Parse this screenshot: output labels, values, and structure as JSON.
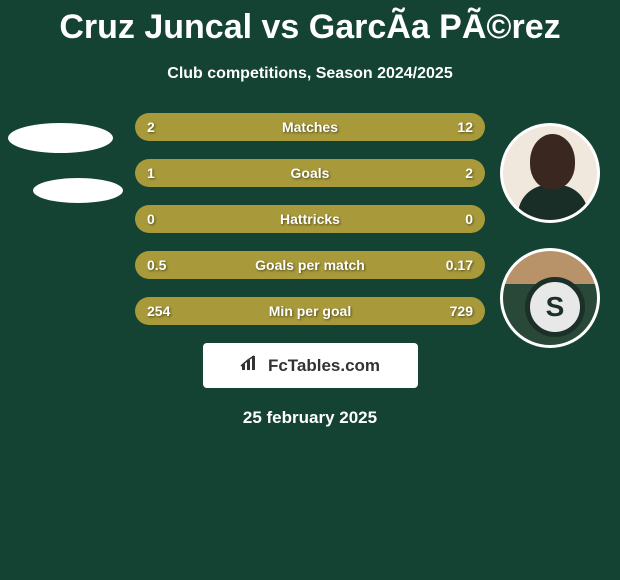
{
  "title": "Cruz Juncal vs GarcÃa PÃ©rez",
  "subtitle": "Club competitions, Season 2024/2025",
  "colors": {
    "background": "#144233",
    "bar_fill": "#a89a3a",
    "bar_bg": "#1a3028",
    "text": "#ffffff"
  },
  "stats": [
    {
      "label": "Matches",
      "left_value": "2",
      "right_value": "12",
      "left_pct": 14,
      "right_pct": 86
    },
    {
      "label": "Goals",
      "left_value": "1",
      "right_value": "2",
      "left_pct": 33,
      "right_pct": 67
    },
    {
      "label": "Hattricks",
      "left_value": "0",
      "right_value": "0",
      "left_pct": 50,
      "right_pct": 50
    },
    {
      "label": "Goals per match",
      "left_value": "0.5",
      "right_value": "0.17",
      "left_pct": 75,
      "right_pct": 25
    },
    {
      "label": "Min per goal",
      "left_value": "254",
      "right_value": "729",
      "left_pct": 26,
      "right_pct": 74
    }
  ],
  "site_badge": {
    "icon": "📊",
    "text": "FcTables.com"
  },
  "date": "25 february 2025"
}
